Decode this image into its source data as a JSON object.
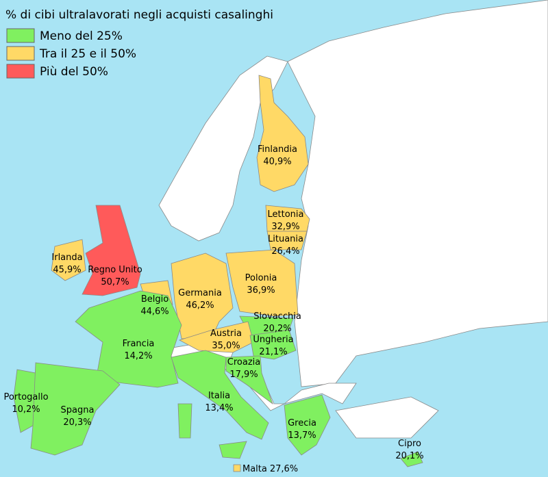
{
  "title": "% di cibi ultralavorati negli acquisti casalinghi",
  "legend": [
    {
      "label": "Meno del 25%",
      "color": "#80f060"
    },
    {
      "label": "Tra il 25 e il 50%",
      "color": "#ffd966"
    },
    {
      "label": "Più del 50%",
      "color": "#ff5a5a"
    }
  ],
  "countries": [
    {
      "name": "Finlandia",
      "value": "40,9%",
      "color": "#ffd966"
    },
    {
      "name": "Lettonia",
      "value": "32,9%",
      "color": "#ffd966"
    },
    {
      "name": "Lituania",
      "value": "26,4%",
      "color": "#ffd966"
    },
    {
      "name": "Irlanda",
      "value": "45,9%",
      "color": "#ffd966"
    },
    {
      "name": "Regno Unito",
      "value": "50,7%",
      "color": "#ff5a5a"
    },
    {
      "name": "Polonia",
      "value": "36,9%",
      "color": "#ffd966"
    },
    {
      "name": "Germania",
      "value": "46,2%",
      "color": "#ffd966"
    },
    {
      "name": "Belgio",
      "value": "44,6%",
      "color": "#ffd966"
    },
    {
      "name": "Slovacchia",
      "value": "20,2%",
      "color": "#80f060"
    },
    {
      "name": "Austria",
      "value": "35,0%",
      "color": "#ffd966"
    },
    {
      "name": "Ungheria",
      "value": "21,1%",
      "color": "#80f060"
    },
    {
      "name": "Francia",
      "value": "14,2%",
      "color": "#80f060"
    },
    {
      "name": "Croazia",
      "value": "17,9%",
      "color": "#80f060"
    },
    {
      "name": "Portogallo",
      "value": "10,2%",
      "color": "#80f060"
    },
    {
      "name": "Spagna",
      "value": "20,3%",
      "color": "#80f060"
    },
    {
      "name": "Italia",
      "value": "13,4%",
      "color": "#80f060"
    },
    {
      "name": "Grecia",
      "value": "13,7%",
      "color": "#80f060"
    },
    {
      "name": "Cipro",
      "value": "20,1%",
      "color": "#80f060"
    },
    {
      "name": "Malta",
      "value": "27,6%",
      "color": "#ffd966"
    }
  ]
}
